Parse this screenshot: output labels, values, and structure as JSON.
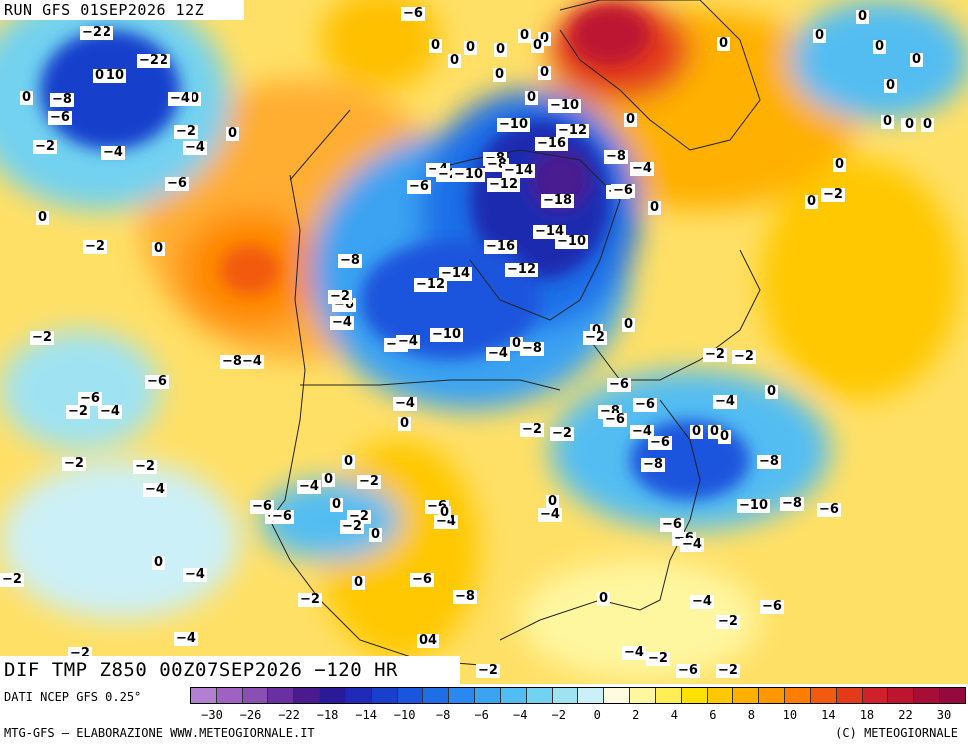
{
  "header": {
    "run_label": "RUN GFS 01SEP2026 12Z"
  },
  "product_label": "DIF TMP Z850 00Z07SEP2026 −120 HR",
  "footer": {
    "data_source": "DATI NCEP GFS 0.25°",
    "elaboration": "MTG-GFS — ELABORAZIONE WWW.METEOGIORNALE.IT",
    "copyright": "(C) METEOGIORNALE"
  },
  "colorbar": {
    "colors": [
      "#b27fd1",
      "#a062c2",
      "#8a4fb3",
      "#6a2fa0",
      "#4a1a8f",
      "#2a1a9a",
      "#1f2ab8",
      "#1840cc",
      "#1a55dd",
      "#1f6ee8",
      "#2b88f0",
      "#3aa3f2",
      "#52bdf2",
      "#72d2f0",
      "#9fe3f3",
      "#ccf0f7",
      "#fffbe0",
      "#fff6a0",
      "#ffee55",
      "#ffe100",
      "#ffc800",
      "#ffb000",
      "#ff9800",
      "#ff7e00",
      "#f25a10",
      "#e23a1a",
      "#d0202a",
      "#bd1530",
      "#a80d38",
      "#950a3e"
    ],
    "tick_labels": [
      "−30",
      "−26",
      "−22",
      "−18",
      "−14",
      "−10",
      "−8",
      "−6",
      "−4",
      "−2",
      "0",
      "2",
      "4",
      "6",
      "8",
      "10",
      "14",
      "18",
      "22",
      "30"
    ]
  },
  "field_labels": [
    "−12",
    "−12",
    "−10",
    "−10",
    "−8",
    "−6",
    "−2",
    "−4",
    "−4",
    "−6",
    "−2",
    "0",
    "0",
    "−2",
    "0",
    "0",
    "−2",
    "−6",
    "−2",
    "−4",
    "−2",
    "−2",
    "−4",
    "−6",
    "−8−4",
    "−6",
    "−6",
    "−10",
    "−10",
    "−12",
    "−16",
    "−8",
    "−4",
    "−8",
    "−14",
    "−12",
    "−6",
    "−18",
    "−14",
    "−10",
    "−16",
    "−12",
    "−14",
    "−12",
    "−8",
    "−6",
    "−4",
    "−2",
    "−8",
    "−10",
    "−4",
    "0",
    "−2",
    "0",
    "−4",
    "0",
    "−6",
    "−8",
    "−4",
    "−8",
    "−6",
    "−6",
    "−4",
    "−2",
    "−2",
    "−4",
    "0",
    "0",
    "−2",
    "0",
    "−4",
    "0",
    "−6",
    "−2",
    "0",
    "−2",
    "−6",
    "−4",
    "−6",
    "−4",
    "−2",
    "0",
    "−2",
    "0",
    "−6",
    "−8",
    "−8",
    "−10",
    "−8",
    "−6",
    "−6",
    "−6",
    "−4",
    "0",
    "−4",
    "0",
    "0",
    "−4",
    "−2",
    "−6",
    "−4",
    "−2",
    "−6",
    "−2",
    "−2",
    "0",
    "−4",
    "−2",
    "0",
    "−6",
    "−8",
    "−4",
    "−2",
    "04",
    "−2",
    "0",
    "0",
    "0",
    "−2",
    "0",
    "0",
    "0",
    "0",
    "0",
    "0",
    "0",
    "0",
    "0",
    "0",
    "0",
    "0",
    "0",
    "0",
    "0",
    "0",
    "0",
    "0",
    "0",
    "−2",
    "−10",
    "−6",
    "0",
    "0",
    "0",
    "0",
    "−8",
    "−4",
    "−2",
    "−2",
    "0",
    "−4"
  ]
}
